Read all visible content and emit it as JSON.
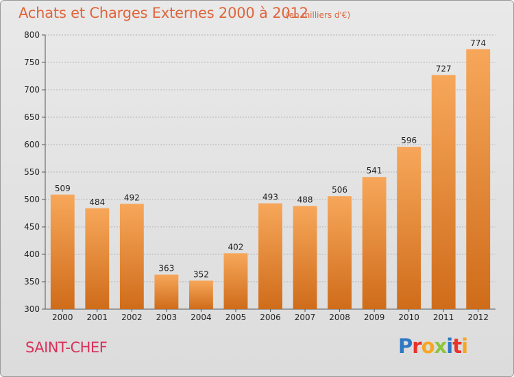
{
  "header": {
    "title": "Achats et Charges Externes 2000 à 2012",
    "unit": "(en milliers d'€)"
  },
  "footer": {
    "place": "SAINT-CHEF",
    "logo": {
      "text": "Proxiti",
      "letters": [
        {
          "ch": "P",
          "color": "#2f78c4"
        },
        {
          "ch": "r",
          "color": "#e8332a"
        },
        {
          "ch": "o",
          "color": "#f5a623"
        },
        {
          "ch": "x",
          "color": "#8cc63f"
        },
        {
          "ch": "i",
          "color": "#2f78c4"
        },
        {
          "ch": "t",
          "color": "#e8332a"
        },
        {
          "ch": "i",
          "color": "#f5a623"
        }
      ]
    }
  },
  "colors": {
    "bar_top": "#f7a75a",
    "bar_bottom": "#cf6c1a",
    "grid": "#b5b5b5",
    "axis_text": "#222222"
  },
  "chart_data": {
    "type": "bar",
    "title": "Achats et Charges Externes 2000 à 2012",
    "subtitle": "(en milliers d'€)",
    "xlabel": "",
    "ylabel": "",
    "categories": [
      "2000",
      "2001",
      "2002",
      "2003",
      "2004",
      "2005",
      "2006",
      "2007",
      "2008",
      "2009",
      "2010",
      "2011",
      "2012"
    ],
    "values": [
      509,
      484,
      492,
      363,
      352,
      402,
      493,
      488,
      506,
      541,
      596,
      727,
      774
    ],
    "data_labels": [
      "509",
      "484",
      "492",
      "363",
      "352",
      "402",
      "493",
      "488",
      "506",
      "541",
      "596",
      "727",
      "774"
    ],
    "ylim": [
      300,
      800
    ],
    "yticks": [
      300,
      350,
      400,
      450,
      500,
      550,
      600,
      650,
      700,
      750,
      800
    ],
    "grid": true,
    "legend": "none"
  }
}
